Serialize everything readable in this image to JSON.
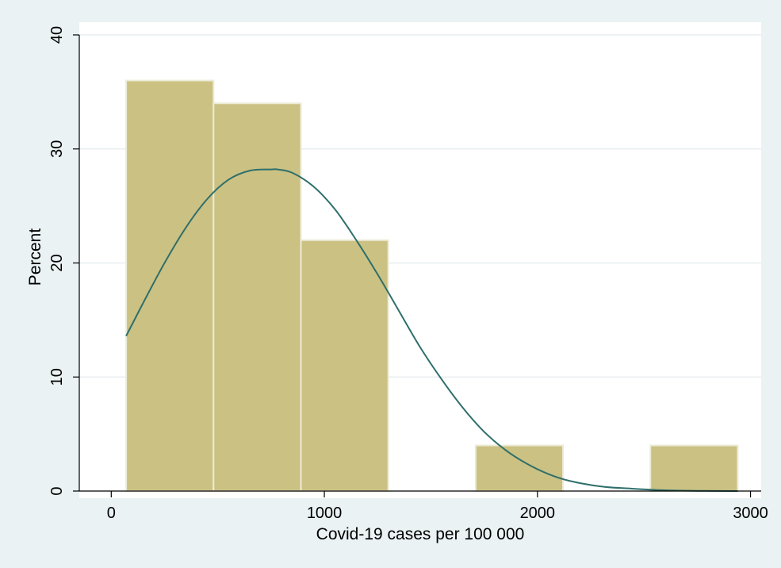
{
  "chart_data": {
    "type": "bar",
    "subtype": "histogram",
    "xlabel": "Covid-19 cases per 100 000",
    "ylabel": "Percent",
    "xlim": [
      -150,
      3050
    ],
    "ylim": [
      0,
      40
    ],
    "x_ticks": [
      0,
      1000,
      2000,
      3000
    ],
    "x_tick_labels": [
      "0",
      "1000",
      "2000",
      "3000"
    ],
    "y_ticks": [
      0,
      10,
      20,
      30,
      40
    ],
    "y_tick_labels": [
      "0",
      "10",
      "20",
      "30",
      "40"
    ],
    "grid": true,
    "legend": "none",
    "colors": {
      "background": "#eaf2f3",
      "plot_area": "#ffffff",
      "bar_fill": "#cbc183",
      "bar_edge": "#ecebd6",
      "curve": "#2f6f6b",
      "grid": "#e8eef0"
    },
    "bins": [
      {
        "start": 70,
        "end": 480,
        "percent": 36
      },
      {
        "start": 480,
        "end": 890,
        "percent": 34
      },
      {
        "start": 890,
        "end": 1300,
        "percent": 22
      },
      {
        "start": 1300,
        "end": 1710,
        "percent": 0
      },
      {
        "start": 1710,
        "end": 2120,
        "percent": 4
      },
      {
        "start": 2120,
        "end": 2530,
        "percent": 0
      },
      {
        "start": 2530,
        "end": 2940,
        "percent": 4
      }
    ],
    "normal_curve": {
      "x": [
        70,
        150,
        250,
        350,
        450,
        550,
        650,
        750,
        780,
        850,
        950,
        1050,
        1150,
        1250,
        1350,
        1450,
        1550,
        1650,
        1750,
        1850,
        1950,
        2050,
        2150,
        2300,
        2450,
        2600,
        2750,
        2940
      ],
      "y": [
        13.6,
        16.5,
        20.0,
        23.1,
        25.6,
        27.3,
        28.1,
        28.2,
        28.2,
        27.9,
        26.7,
        24.7,
        22.0,
        19.0,
        15.8,
        12.6,
        9.8,
        7.3,
        5.2,
        3.6,
        2.4,
        1.5,
        0.9,
        0.4,
        0.2,
        0.07,
        0.02,
        0.0
      ]
    }
  }
}
